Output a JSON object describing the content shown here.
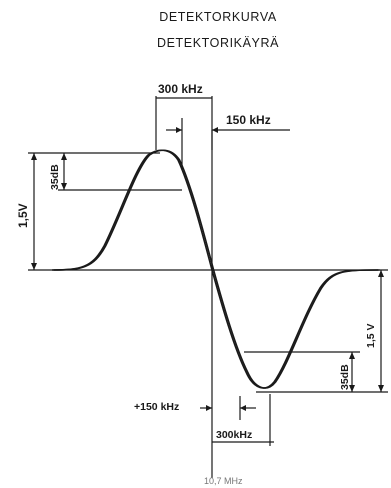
{
  "titles": {
    "line1": "DETEKTORKURVA",
    "line2": "DETEKTORIKÄYRÄ"
  },
  "labels": {
    "bandwidth_top": "300 kHz",
    "offset_top": "150 kHz",
    "voltage_left": "1,5V",
    "db_left": "35dB",
    "voltage_right": "1,5 V",
    "db_right": "35dB",
    "offset_bottom": "+150 kHz",
    "bandwidth_bottom": "300kHz",
    "center_freq": "10,7 MHz"
  }
}
